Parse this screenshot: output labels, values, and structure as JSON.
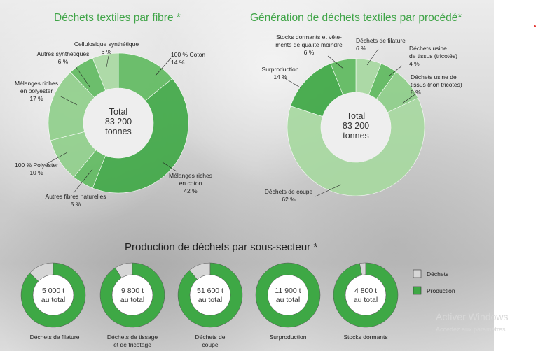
{
  "chart_data": [
    {
      "type": "pie",
      "title": "Déchets textiles par fibre *",
      "center_lines": [
        "Total",
        "83 200",
        "tonnes"
      ],
      "slices": [
        {
          "label": [
            "100 % Coton",
            "14 %"
          ],
          "value": 14
        },
        {
          "label": [
            "Mélanges riches",
            "en coton",
            "42 %"
          ],
          "value": 42
        },
        {
          "label": [
            "Autres fibres naturelles",
            "5 %"
          ],
          "value": 5
        },
        {
          "label": [
            "100 % Polyester",
            "10 %"
          ],
          "value": 10
        },
        {
          "label": [
            "Mélanges riches",
            "en polyester",
            "17 %"
          ],
          "value": 17
        },
        {
          "label": [
            "Autres synthétiques",
            "6 %"
          ],
          "value": 6
        },
        {
          "label": [
            "Cellulosique synthétique",
            "6 %"
          ],
          "value": 6
        }
      ]
    },
    {
      "type": "pie",
      "title": "Génération de déchets textiles par procédé*",
      "center_lines": [
        "Total",
        "83 200",
        "tonnes"
      ],
      "slices": [
        {
          "label": [
            "Déchets de filature",
            "6 %"
          ],
          "value": 6
        },
        {
          "label": [
            "Déchets usine",
            "de tissus (tricotés)",
            "4 %"
          ],
          "value": 4
        },
        {
          "label": [
            "Déchets usine de",
            "tissus (non tricotés)",
            "8 %"
          ],
          "value": 8
        },
        {
          "label": [
            "Déchets de coupe",
            "62 %"
          ],
          "value": 62
        },
        {
          "label": [
            "Surproduction",
            "14 %"
          ],
          "value": 14
        },
        {
          "label": [
            "Stocks dormants et vête-",
            "ments de qualité moindre",
            "6 %"
          ],
          "value": 6
        }
      ]
    },
    {
      "type": "pie",
      "title": "Production de déchets par sous-secteur *",
      "legend": [
        "Déchets",
        "Production"
      ],
      "legend_position": "right",
      "items": [
        {
          "name": [
            "Déchets de filature"
          ],
          "total": [
            "5 000 t",
            "au total"
          ],
          "waste_share": 0.13
        },
        {
          "name": [
            "Déchets de tissage",
            "et de tricotage"
          ],
          "total": [
            "9 800 t",
            "au total"
          ],
          "waste_share": 0.09
        },
        {
          "name": [
            "Déchets de",
            "coupe"
          ],
          "total": [
            "51 600 t",
            "au total"
          ],
          "waste_share": 0.11
        },
        {
          "name": [
            "Surproduction"
          ],
          "total": [
            "11 900 t",
            "au total"
          ],
          "waste_share": 0.0
        },
        {
          "name": [
            "Stocks dormants"
          ],
          "total": [
            "4 800 t",
            "au total"
          ],
          "waste_share": 0.03
        }
      ]
    }
  ],
  "colors": {
    "green_dark": "#3ea845",
    "green_mid": "#5fba5f",
    "green_light": "#8fcf8a",
    "green_pale": "#a8d9a1",
    "waste_grey": "#d6d6d6",
    "title_green": "#3fa447"
  },
  "watermark": [
    "Activer Windows",
    "Accédez aux paramètres"
  ]
}
